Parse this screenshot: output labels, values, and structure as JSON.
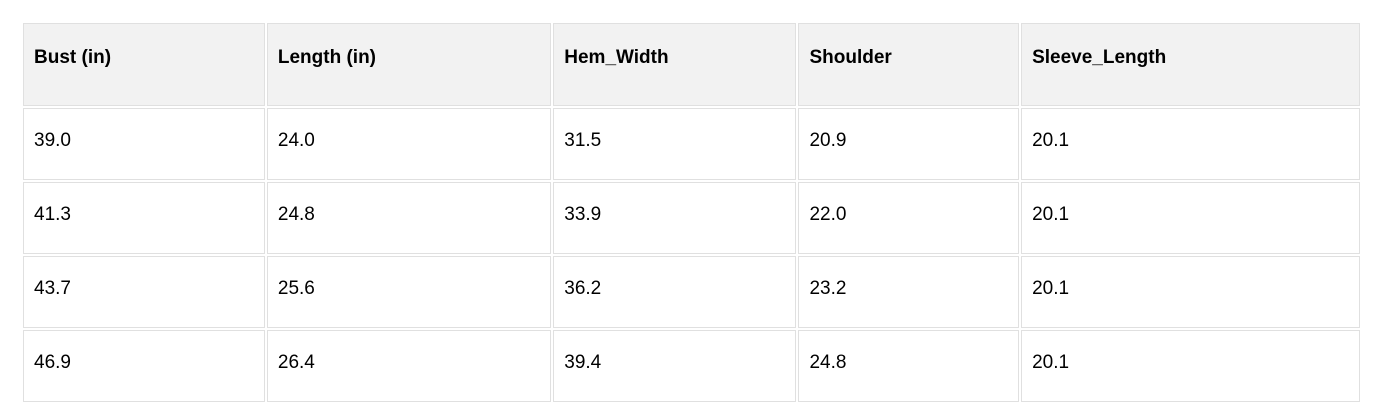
{
  "colors": {
    "header_background": "#f2f2f2",
    "cell_border": "#e0e0e0",
    "text": "#000000",
    "page_background": "#ffffff"
  },
  "table": {
    "columns": [
      "Bust (in)",
      "Length (in)",
      "Hem_Width",
      "Shoulder",
      "Sleeve_Length"
    ],
    "rows": [
      [
        "39.0",
        "24.0",
        "31.5",
        "20.9",
        "20.1"
      ],
      [
        "41.3",
        "24.8",
        "33.9",
        "22.0",
        "20.1"
      ],
      [
        "43.7",
        "25.6",
        "36.2",
        "23.2",
        "20.1"
      ],
      [
        "46.9",
        "26.4",
        "39.4",
        "24.8",
        "20.1"
      ]
    ]
  },
  "chart_data": {
    "type": "table",
    "title": "",
    "columns": [
      "Bust (in)",
      "Length (in)",
      "Hem_Width",
      "Shoulder",
      "Sleeve_Length"
    ],
    "rows": [
      [
        39.0,
        24.0,
        31.5,
        20.9,
        20.1
      ],
      [
        41.3,
        24.8,
        33.9,
        22.0,
        20.1
      ],
      [
        43.7,
        25.6,
        36.2,
        23.2,
        20.1
      ],
      [
        46.9,
        26.4,
        39.4,
        24.8,
        20.1
      ]
    ]
  }
}
